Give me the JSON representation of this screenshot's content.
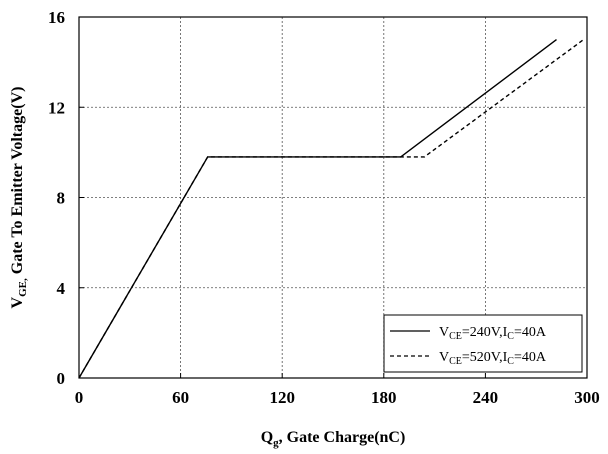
{
  "chart_data": {
    "type": "line",
    "title": "",
    "xlabel": "Q",
    "xlabel_sub": "g",
    "xlabel_rest": ", Gate Charge(nC)",
    "ylabel": "V",
    "ylabel_sub": "GE,",
    "ylabel_rest": " Gate To Emitter Voltage(V)",
    "xlim": [
      0,
      300
    ],
    "ylim": [
      0,
      16
    ],
    "xticks": [
      0,
      60,
      120,
      180,
      240,
      300
    ],
    "yticks": [
      0,
      4,
      8,
      12,
      16
    ],
    "xtick_labels": [
      "0",
      "60",
      "120",
      "180",
      "240",
      "300"
    ],
    "ytick_labels": [
      "0",
      "4",
      "8",
      "12",
      "16"
    ],
    "grid": true,
    "legend_position": "bottom-right",
    "series": [
      {
        "legend": {
          "a": "V",
          "a_sub": "CE",
          "b": "=240V,I",
          "b_sub": "C",
          "c": "=40A"
        },
        "style": "solid",
        "x": [
          0,
          76,
          190,
          282
        ],
        "y": [
          0,
          9.8,
          9.8,
          15
        ]
      },
      {
        "legend": {
          "a": "V",
          "a_sub": "CE",
          "b": "=520V,I",
          "b_sub": "C",
          "c": "=40A"
        },
        "style": "dashed",
        "x": [
          0,
          76,
          204,
          298
        ],
        "y": [
          0,
          9.8,
          9.8,
          15
        ]
      }
    ]
  }
}
